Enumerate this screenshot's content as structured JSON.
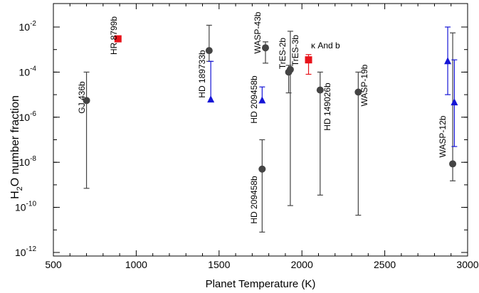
{
  "chart_data": {
    "type": "scatter",
    "xlabel": "Planet Temperature (K)",
    "ylabel": {
      "main": "H",
      "sub": "2",
      "rest": "O number fraction"
    },
    "xlim": [
      500,
      3000
    ],
    "ylim_log10": [
      -12,
      -2
    ],
    "x_ticks": [
      "500",
      "1000",
      "1500",
      "2000",
      "2500",
      "3000"
    ],
    "y_ticks": [
      {
        "base": "10",
        "exp": "-2"
      },
      {
        "base": "10",
        "exp": "-4"
      },
      {
        "base": "10",
        "exp": "-6"
      },
      {
        "base": "10",
        "exp": "-8"
      },
      {
        "base": "10",
        "exp": "-10"
      },
      {
        "base": "10",
        "exp": "-12"
      }
    ],
    "colors": {
      "gray": "#444444",
      "red": "#e8131b",
      "blue": "#1515d6",
      "axis": "#000000"
    },
    "series": [
      {
        "marker": "circle",
        "color": "#444444",
        "points": [
          {
            "label": "GJ 436b",
            "x": 700,
            "y": 5.5e-06,
            "lo": 7e-10,
            "hi": 0.0001
          },
          {
            "label": "HD 189733b",
            "x": 1440,
            "y": 0.0009,
            "lo": 0.0003,
            "hi": 0.012
          },
          {
            "label": "WASP-43b",
            "x": 1780,
            "y": 0.0012,
            "lo": 0.00025,
            "hi": 0.0022
          },
          {
            "label": "HD 209458b",
            "x": 1760,
            "y": 5e-09,
            "lo": 8e-12,
            "hi": 1e-07
          },
          {
            "label": "TrES-2b",
            "x": 1920,
            "y": 0.0001,
            "lo": 1.2e-05,
            "hi": 0.0002
          },
          {
            "label": "TrES-3b",
            "x": 1930,
            "y": 0.00013,
            "lo": 1.2e-10,
            "hi": 0.0065
          },
          {
            "label": "HD 149026b",
            "x": 2110,
            "y": 1.6e-05,
            "lo": 3.5e-10,
            "hi": 0.0001
          },
          {
            "label": "WASP-19b",
            "x": 2340,
            "y": 1.3e-05,
            "lo": 4.5e-11,
            "hi": 0.0001
          },
          {
            "label": "WASP-12b",
            "x": 2910,
            "y": 8.5e-09,
            "lo": 1.5e-09,
            "hi": 0.0055
          }
        ]
      },
      {
        "marker": "square",
        "color": "#e8131b",
        "points": [
          {
            "label": "HR 8799b",
            "x": 890,
            "y": 0.003,
            "lo": 0.0025,
            "hi": 0.004
          },
          {
            "label": "κ And b",
            "x": 2040,
            "y": 0.00035,
            "lo": 8e-05,
            "hi": 0.0006
          }
        ]
      },
      {
        "marker": "triangle",
        "color": "#1515d6",
        "points": [
          {
            "label": "",
            "x": 1450,
            "y": 6e-06,
            "lo": 5e-06,
            "hi": 0.0003
          },
          {
            "label": "",
            "x": 1760,
            "y": 5.5e-06,
            "lo": 4.5e-06,
            "hi": 2.2e-05
          },
          {
            "label": "",
            "x": 2880,
            "y": 0.0003,
            "lo": 1e-05,
            "hi": 0.01
          },
          {
            "label": "",
            "x": 2920,
            "y": 4.5e-06,
            "lo": 5e-08,
            "hi": 0.00035
          }
        ]
      }
    ],
    "annotations": [
      {
        "text": "GJ 436b"
      },
      {
        "text": "HR 8799b"
      },
      {
        "text": "HD 189733b"
      },
      {
        "text": "WASP-43b"
      },
      {
        "text": "HD 209458b"
      },
      {
        "text": "HD 209458b"
      },
      {
        "text": "TrES-2b"
      },
      {
        "text": "TrES-3b"
      },
      {
        "text": "κ And b"
      },
      {
        "text": "HD 149026b"
      },
      {
        "text": "WASP-19b"
      },
      {
        "text": "WASP-12b"
      }
    ]
  }
}
